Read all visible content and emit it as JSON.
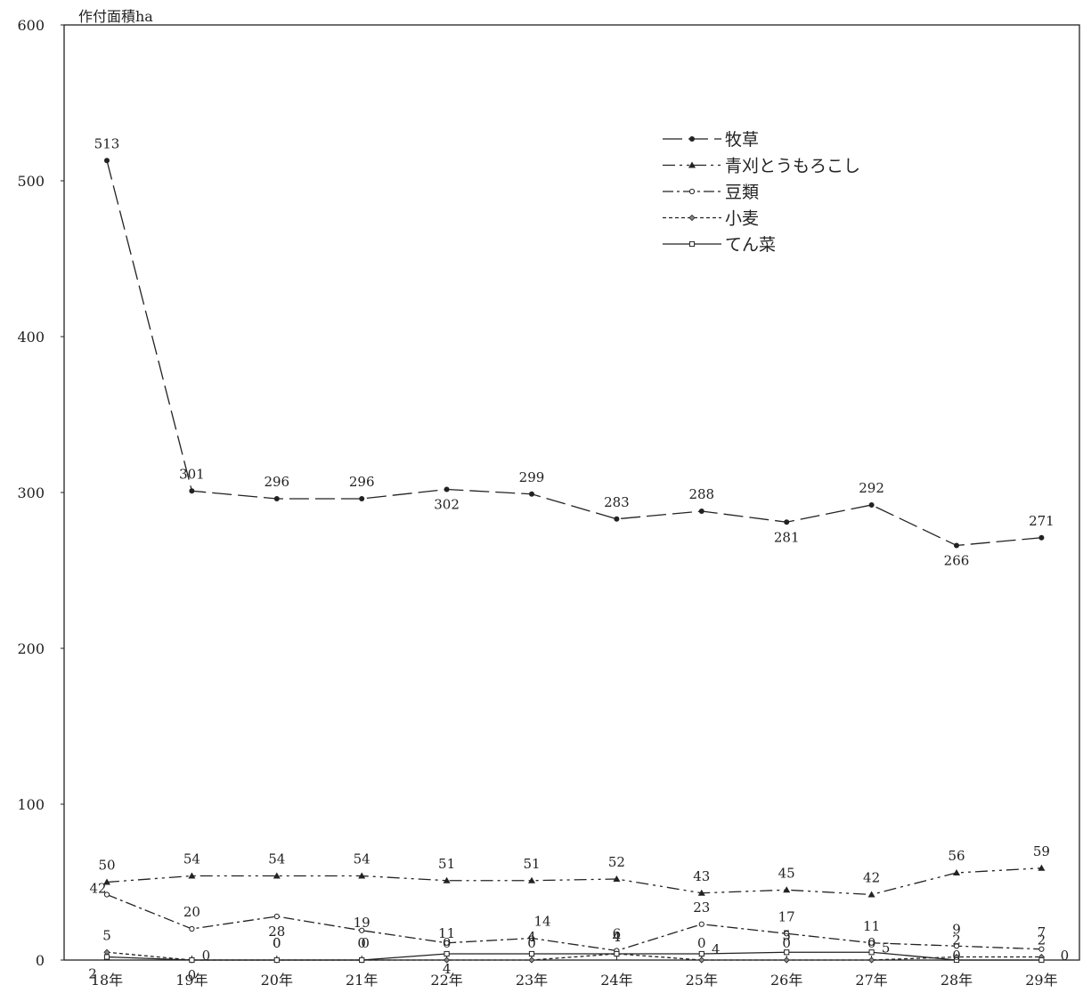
{
  "chart_data": {
    "type": "line",
    "ylabel": "作付面積ha",
    "title": "",
    "xlabel": "",
    "ylim": [
      0,
      600
    ],
    "yticks": [
      0,
      100,
      200,
      300,
      400,
      500,
      600
    ],
    "categories": [
      "18年",
      "19年",
      "20年",
      "21年",
      "22年",
      "23年",
      "24年",
      "25年",
      "26年",
      "27年",
      "28年",
      "29年"
    ],
    "legend_position": "top-right",
    "grid": false,
    "series": [
      {
        "name": "牧草",
        "values": [
          513,
          301,
          296,
          296,
          302,
          299,
          283,
          288,
          281,
          292,
          266,
          271
        ],
        "dash": "22 7",
        "marker": "dot"
      },
      {
        "name": "青刈とうもろこし",
        "values": [
          50,
          54,
          54,
          54,
          51,
          51,
          52,
          43,
          45,
          42,
          56,
          59
        ],
        "dash": "14 5 3 5 3 5",
        "marker": "triangle"
      },
      {
        "name": "豆類",
        "values": [
          42,
          20,
          28,
          19,
          11,
          14,
          6,
          23,
          17,
          11,
          9,
          7
        ],
        "dash": "12 4 3 4",
        "marker": "circle"
      },
      {
        "name": "小麦",
        "values": [
          5,
          0,
          0,
          0,
          0,
          0,
          4,
          0,
          0,
          0,
          2,
          2
        ],
        "dash": "4 3",
        "marker": "diamond"
      },
      {
        "name": "てん菜",
        "values": [
          2,
          0,
          0,
          0,
          4,
          4,
          4,
          4,
          5,
          5,
          0,
          0
        ],
        "dash": "",
        "marker": "square"
      }
    ]
  }
}
